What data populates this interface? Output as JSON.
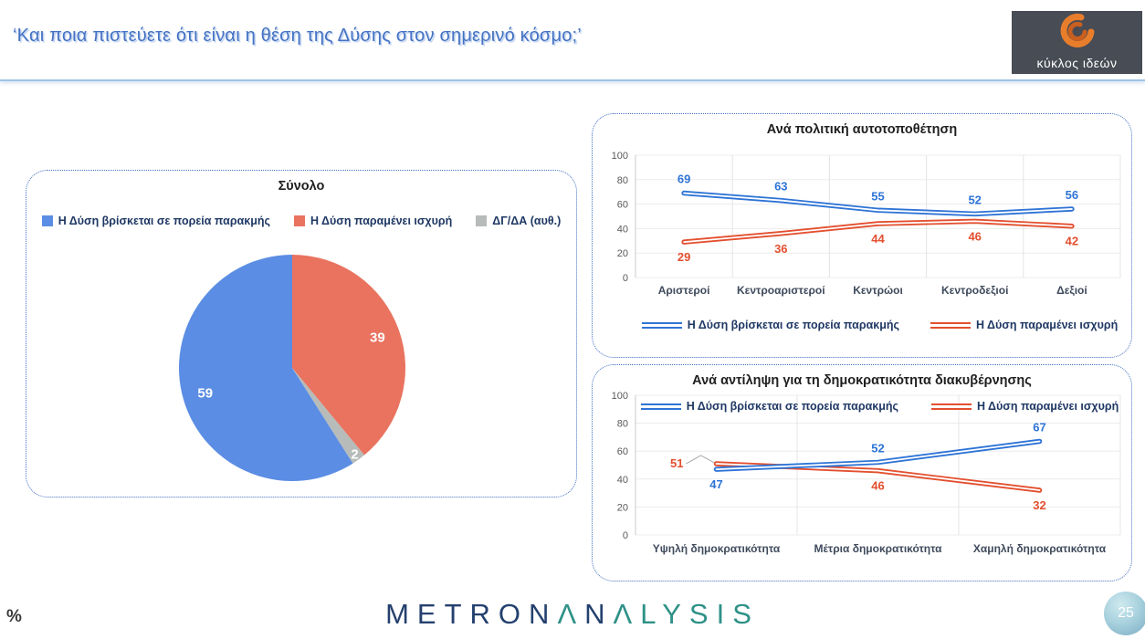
{
  "header": {
    "title": "‘Και ποια πιστεύετε ότι είναι η θέση της Δύσης στον σημερινό κόσμο;’",
    "logo_text": "κύκλος ιδεών"
  },
  "footer": {
    "percent_label": "%",
    "brand_letters": [
      {
        "ch": "M",
        "c": "navy"
      },
      {
        "ch": "E",
        "c": "navy"
      },
      {
        "ch": "T",
        "c": "navy"
      },
      {
        "ch": "R",
        "c": "navy"
      },
      {
        "ch": "O",
        "c": "navy"
      },
      {
        "ch": "N",
        "c": "navy"
      },
      {
        "ch": "Λ",
        "c": "teal"
      },
      {
        "ch": "N",
        "c": "navy"
      },
      {
        "ch": "Λ",
        "c": "teal"
      },
      {
        "ch": "L",
        "c": "teal"
      },
      {
        "ch": "Y",
        "c": "teal"
      },
      {
        "ch": "S",
        "c": "teal"
      },
      {
        "ch": "I",
        "c": "teal"
      },
      {
        "ch": "S",
        "c": "teal"
      }
    ],
    "page_number": "25"
  },
  "colors": {
    "title_blue": "#4472C4",
    "header_rule": "#9DC3E6",
    "panel_border": "#4472C4",
    "pie_blue": "#5B8DE4",
    "pie_red": "#E9735F",
    "pie_gray": "#B7BBB9",
    "line_blue": "#2E74D6",
    "line_red": "#E34F2F",
    "brand_navy": "#24406E",
    "brand_teal": "#2E9187"
  },
  "chart_data": [
    {
      "type": "pie",
      "title": "Σύνολο",
      "legend": [
        {
          "label": "Η Δύση βρίσκεται σε πορεία παρακμής",
          "color": "#5B8DE4"
        },
        {
          "label": "Η Δύση παραμένει ισχυρή",
          "color": "#E9735F"
        },
        {
          "label": "ΔΓ/ΔΑ (αυθ.)",
          "color": "#B7BBB9"
        }
      ],
      "slices_clockwise_from_top": [
        {
          "name": "Η Δύση παραμένει ισχυρή",
          "value": 39,
          "color": "#E9735F"
        },
        {
          "name": "ΔΓ/ΔΑ (αυθ.)",
          "value": 2,
          "color": "#B7BBB9"
        },
        {
          "name": "Η Δύση βρίσκεται σε πορεία παρακμής",
          "value": 59,
          "color": "#5B8DE4"
        }
      ]
    },
    {
      "type": "line",
      "title": "Ανά πολιτική αυτοτοποθέτηση",
      "categories": [
        "Αριστεροί",
        "Κεντροαριστεροί",
        "Κεντρώοι",
        "Κεντροδεξιοί",
        "Δεξιοί"
      ],
      "ylim": [
        0,
        100
      ],
      "yticks": [
        0,
        20,
        40,
        60,
        80,
        100
      ],
      "grid": true,
      "legend_position": "bottom",
      "series": [
        {
          "name": "Η Δύση βρίσκεται σε πορεία παρακμής",
          "color": "#2E74D6",
          "values": [
            69,
            63,
            55,
            52,
            56
          ],
          "label_pos": [
            "above",
            "above",
            "above",
            "above",
            "above"
          ]
        },
        {
          "name": "Η Δύση παραμένει ισχυρή",
          "color": "#E34F2F",
          "values": [
            29,
            36,
            44,
            46,
            42
          ],
          "label_pos": [
            "below",
            "below",
            "below",
            "below",
            "below"
          ]
        }
      ]
    },
    {
      "type": "line",
      "title": "Ανά αντίληψη για τη δημοκρατικότητα διακυβέρνησης",
      "categories": [
        "Υψηλή δημοκρατικότητα",
        "Μέτρια δημοκρατικότητα",
        "Χαμηλή δημοκρατικότητα"
      ],
      "ylim": [
        0,
        100
      ],
      "yticks": [
        0,
        20,
        40,
        60,
        80,
        100
      ],
      "grid": true,
      "legend_position": "top-inside",
      "series": [
        {
          "name": "Η Δύση βρίσκεται σε πορεία παρακμής",
          "color": "#2E74D6",
          "values": [
            47,
            52,
            67
          ],
          "label_pos": [
            "below",
            "above",
            "above"
          ]
        },
        {
          "name": "Η Δύση παραμένει ισχυρή",
          "color": "#E34F2F",
          "values": [
            51,
            46,
            32
          ],
          "label_pos": [
            "callout-left",
            "below",
            "below"
          ]
        }
      ]
    }
  ]
}
